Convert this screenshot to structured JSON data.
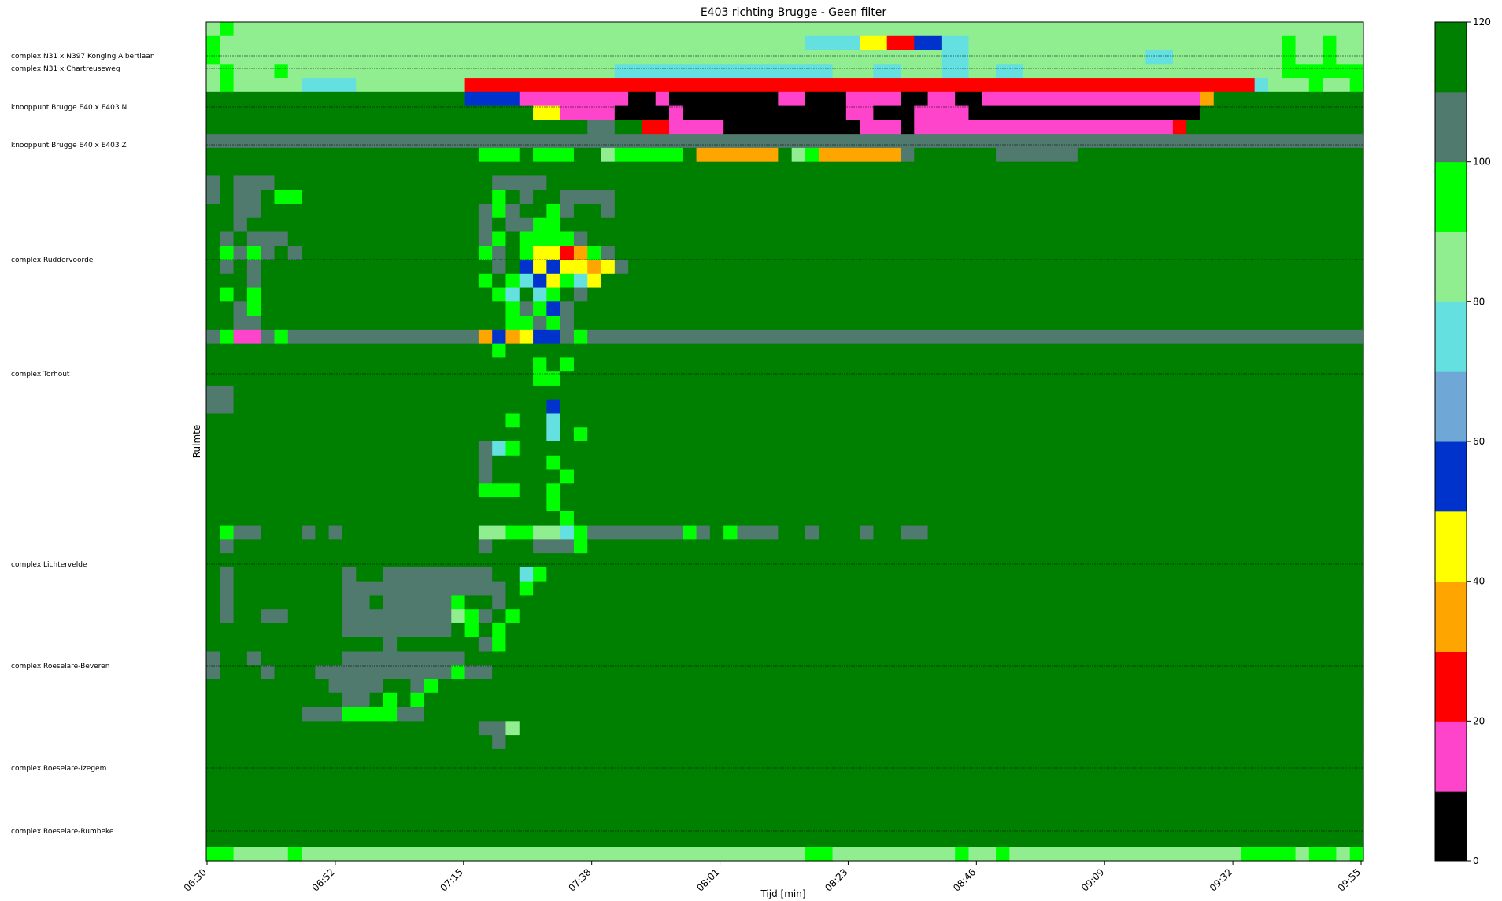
{
  "chart_data": {
    "type": "heatmap",
    "title": "E403 richting Brugge - Geen filter",
    "xlabel": "Tijd [min]",
    "ylabel": "Ruimte",
    "x_ticks": [
      "06:30",
      "06:52",
      "07:15",
      "07:38",
      "08:01",
      "08:23",
      "08:46",
      "09:09",
      "09:32",
      "09:55"
    ],
    "y_labels": [
      "complex N31 x N397 Konging Albertlaan",
      "complex N31 x Chartreuseweg",
      "knooppunt Brugge E40 x E403 N",
      "knooppunt Brugge E40 x E403 Z",
      "complex Ruddervoorde",
      "complex Torhout",
      "complex Lichtervelde",
      "complex Roeselare-Beveren",
      "complex Roeselare-Izegem",
      "complex Roeselare-Rumbeke"
    ],
    "colorbar": {
      "ticks": [
        0,
        20,
        40,
        60,
        80,
        100,
        120
      ],
      "range": [
        0,
        120
      ],
      "levels": [
        {
          "from": 0,
          "to": 10,
          "color": "#000000"
        },
        {
          "from": 10,
          "to": 20,
          "color": "#ff44cc"
        },
        {
          "from": 20,
          "to": 30,
          "color": "#ff0000"
        },
        {
          "from": 30,
          "to": 40,
          "color": "#ffa500"
        },
        {
          "from": 40,
          "to": 50,
          "color": "#ffff00"
        },
        {
          "from": 50,
          "to": 60,
          "color": "#0033cc"
        },
        {
          "from": 60,
          "to": 70,
          "color": "#6fa8d6"
        },
        {
          "from": 70,
          "to": 80,
          "color": "#64e0e0"
        },
        {
          "from": 80,
          "to": 90,
          "color": "#90ee90"
        },
        {
          "from": 90,
          "to": 100,
          "color": "#00ff00"
        },
        {
          "from": 100,
          "to": 110,
          "color": "#507a6e"
        },
        {
          "from": 110,
          "to": 120,
          "color": "#008000"
        }
      ]
    },
    "speed_grid": [
      "zwzzzzzzzzzzzzzzzzzzzzzzzzzzzzzzzzzzzzzzzzzzzzzzzzzzzzzzzzzzzzzzzzzzzzzzzzzzzzzzzzzzz",
      "wzzzzzzzzzzzzzzzzzzzzzzzzzzzzzzzzzzzzzzzzzzzuuuuyyrrbbuuzzzzzzzzzzzzzzzzzzzzzzzwzzwzzz",
      "wzzzzzzzzzzzzzzzzzzzzzzzzzzzzzzzzzzzzzzzzzzzzzzzzzzzzzuuzzzzzzzzzzzzzuuzzzzzzzzwzzwzzz",
      "zwzzzwzzzzzzzzzzzzzzzzzzzzzzzzuuuuuuuuuuuuuuuuzzzuuzzzuuzzuuzzzzzzzzzzzzzzzzzzzwwwwwww",
      "zwzzzzzuuuuzzzzzzzzrrrrrrrrrrrrrrrrrrrrrrrrrrrrrrrrrrrrrrrrrrrrrrrrrrrrrrrrrruzzzwzzwww",
      "GGGGGGGGGGGGGGGGGGGbbbbffffffffkkfkkkkkkkkffkkkffffkkffkkffffffffffffffffoGGGGGGGGGGGG",
      "GGGGGGGGGGGGGGGGGGGGGGGGyyffffkkkkfkkkkkkkkkkkkffkkkffffkkkkkkkkkkkkkkkkkGGGGGGGGGGGGGG",
      "GGGGGGGGGGGGGGGGGGGGGGGGGGGGggGGrrffffkkkkkkkkkkfffkfffffffffffffffffffrGGGGGGGGGGGGGG",
      "ggggggggggggggggggggggggggggggggggggggggggggggggggggggggggggggggggggggggggggggggggggggggg",
      "GGGGGGGGGGGGGGGGGGGGwwwGwwwGGzwwwwwGooooooGzwoooooogGGGGGGggggggGGGGGGGGGGGGGGGGGGGGGG",
      "GGGGGGGGGGGGGGGGGGGGGGGGGGGGGGGGGGGGGGGGGGGGGGGGGGGGGGGGGGGGGGGGGGGGGGGGGGGGGGGGGGGGGG",
      "gGgggGGGGGGGGGGGGGGGGggggGGGGGGGGGGGGGGGGGGGGGGGGGGGGGGGGGGGGGGGGGGGGGGGGGGGGGGGGGGGGG",
      "gGggGwwGGGGGGGGGGGGGGwGgGGggggGGGGGGGGGGGGGGGGGGGGGGGGGGGGGGGGGGGGGGGGGGGGGGGGGGGGGGGG",
      "GGggGGGGGGGGGGGGGGGGgwgGGwgGGgGGGGGGGGGGGGGGGGGGGGGGGGGGGGGGGGGGGGGGGGGGGGGGGGGGGGGGGG",
      "GGgGGGGGGGGGGGGGGGGGgGggwwGGGGGGGGGGGGGGGGGGGGGGGGGGGGGGGGGGGGGGGGGGGGGGGGGGGGGGGGGGGG",
      "GgGgggGGGGGGGGGGGGGGgwGwwwwgGGGGGGGGGGGGGGGGGGGGGGGGGGGGGGGGGGGGGGGGGGGGGGGGGGGGGGGGGG",
      "GwgwgGgGGGGGGGGGGGGGwgGwyyrowgGGGGGGGGGGGGGGGGGGGGGGGGGGGGGGGGGGGGGGGGGGGGGGGGGGGGGGGG",
      "GgGgGGGGGGGGGGGGGGGGGgGbybyyoygGGGGGGGGGGGGGGGGGGGGGGGGGGGGGGGGGGGGGGGGGGGGGGGGGGGGGGG",
      "GGGgGGGGGGGGGGGGGGGGwGwubywuyGGGGGGGGGGGGGGGGGGGGGGGGGGGGGGGGGGGGGGGGGGGGGGGGGGGGGGGGG",
      "GwGwGGGGGGGGGGGGGGGGGwuGuwGgGGGGGGGGGGGGGGGGGGGGGGGGGGGGGGGGGGGGGGGGGGGGGGGGGGGGGGGGGG",
      "GGgwGGGGGGGGGGGGGGGGGGwgwbgGGGGGGGGGGGGGGGGGGGGGGGGGGGGGGGGGGGGGGGGGGGGGGGGGGGGGGGGGGG",
      "GGggGGGGGGGGGGGGGGGGGGwwgwgGGGGGGGGGGGGGGGGGGGGGGGGGGGGGGGGGGGGGGGGGGGGGGGGGGGGGGGGGGG",
      "gwffgwggggggggggggggoboybbgwggggggggggggggggggggggggggggggggggggggggggggggggggggggggggg",
      "GGGGGGGGGGGGGGGGGGGGGwGGGGGGGGGGGGGGGGGGGGGGGGGGGGGGGGGGGGGGGGGGGGGGGGGGGGGGGGGGGGGGGG",
      "GGGGGGGGGGGGGGGGGGGGGGGGwGwGGGGGGGGGGGGGGGGGGGGGGGGGGGGGGGGGGGGGGGGGGGGGGGGGGGGGGGGGGG",
      "GGGGGGGGGGGGGGGGGGGGGGGGwwGGGGGGGGGGGGGGGGGGGGGGGGGGGGGGGGGGGGGGGGGGGGGGGGGGGGGGGGGGGG",
      "ggGGGGGGGGGGGGGGGGGGGGGGGGGGGGGGGGGGGGGGGGGGGGGGGGGGGGGGGGGGGGGGGGGGGGGGGGGGGGGGGGGGGG",
      "ggGGGGGGGGGGGGGGGGGGGGGGGbGGGGGGGGGGGGGGGGGGGGGGGGGGGGGGGGGGGGGGGGGGGGGGGGGGGGGGGGGGGG",
      "GGGGGGGGGGGGGGGGGGGGGGwGGuGGGGGGGGGGGGGGGGGGGGGGGGGGGGGGGGGGGGGGGGGGGGGGGGGGGGGGGGGGGG",
      "GGGGGGGGGGGGGGGGGGGGGGGGGuGwGGGGGGGGGGGGGGGGGGGGGGGGGGGGGGGGGGGGGGGGGGGGGGGGGGGGGGGGGG",
      "GGGGGGGGGGGGGGGGGGGGguwGGGGGGGGGGGGGGGGGGGGGGGGGGGGGGGGGGGGGGGGGGGGGGGGGGGGGGGGGGGGGGG",
      "GGGGGGGGGGGGGGGGGGGGgGGGGwGGGGGGGGGGGGGGGGGGGGGGGGGGGGGGGGGGGGGGGGGGGGGGGGGGGGGGGGGGGG",
      "GGGGGGGGGGGGGGGGGGGGgGGGGGwGGGGGGGGGGGGGGGGGGGGGGGGGGGGGGGGGGGGGGGGGGGGGGGGGGGGGGGGGGG",
      "GGGGGGGGGGGGGGGGGGGGwwwGGwGGGGGGGGGGGGGGGGGGGGGGGGGGGGGGGGGGGGGGGGGGGGGGGGGGGGGGGGGGGG",
      "GGGGGGGGGGGGGGGGGGGGGGGGGwGGGGGGGGGGGGGGGGGGGGGGGGGGGGGGGGGGGGGGGGGGGGGGGGGGGGGGGGGGGG",
      "GGGGGGGGGGGGGGGGGGGGGGGGGGwGGGGGGGGGGGGGGGGGGGGGGGGGGGGGGGGGGGGGGGGGGGGGGGGGGGGGGGGGGG",
      "GwggGGGgGgGGGGGGGGGGzzwwzzuwgggggggwgGwgggGGgGGGgGGggGGGGGGGGGGGGGGGGGGGGGGGGGGGGGGGGG",
      "GgGGGGGGGGGGGGGGGGGGgGGGgggwGGGGGGGGGGGGGGGGGGGGGGGGGGGGGGGGGGGGGGGGGGGGGGGGGGGGGGGGGG",
      "GGGGGGGGGGGGGGGGGGGGGGGGGGGGGGGGGGGGGGGGGGGGGGGGGGGGGGGGGGGGGGGGGGGGGGGGGGGGGGGGGGGGGG",
      "GgGGGGGGGGgGGggggggggGGuwGGGGGGGGGGGGGGGGGGGGGGGGGGGGGGGGGGGGGGGGGGGGGGGGGGGGGGGGGGGGG",
      "GgGGGGGGGGggggggggggggGwGGGGGGGGGGGGGGGGGGGGGGGGGGGGGGGGGGGGGGGGGGGGGGGGGGGGGGGGGGGGGG",
      "GgGGGGGGGGggGgggggwGGgGGGGGGGGGGGGGGGGGGGGGGGGGGGGGGGGGGGGGGGGGGGGGGGGGGGGGGGGGGGGGGGG",
      "GgGGggGGGGggggggggzwgGwGGGGGGGGGGGGGGGGGGGGGGGGGGGGGGGGGGGGGGGGGGGGGGGGGGGGGGGGGGGGGGG",
      "GGGGGGGGGGggggggggGwGwGGGGGGGGGGGGGGGGGGGGGGGGGGGGGGGGGGGGGGGGGGGGGGGGGGGGGGGGGGGGGGGG",
      "GGGGGGGGGGGGGgGGGGGGgwGGGGGGGGGGGGGGGGGGGGGGGGGGGGGGGGGGGGGGGGGGGGGGGGGGGGGGGGGGGGGGGG",
      "gGGgGGGGGGgggggggggGGGGGGGGGGGGGGGGGGGGGGGGGGGGGGGGGGGGGGGGGGGGGGGGGGGGGGGGGGGGGGGGGGG",
      "gGGGgGGGggggggggggwggGGGGGGGGGGGGGGGGGGGGGGGGGGGGGGGGGGGGGGGGGGGGGGGGGGGGGGGGGGGGGGGGG",
      "GGGGGGGGGggggGGgwGGGGGGGGGGGGGGGGGGGGGGGGGGGGGGGGGGGGGGGGGGGGGGGGGGGGGGGGGGGGGGGGGGGGG",
      "GGGGGGGGGGggGwGwGGGGGGGGGGGGGGGGGGGGGGGGGGGGGGGGGGGGGGGGGGGGGGGGGGGGGGGGGGGGGGGGGGGGGG",
      "GGGGGGGgggwwwwggGGGGGGGGGGGGGGGGGGGGGGGGGGGGGGGGGGGGGGGGGGGGGGGGGGGGGGGGGGGGGGGGGGGGGG",
      "GGGGGGGGGGGGGGGGGGGGggzGGGGGGGGGGGGGGGGGGGGGGGGGGGGGGGGGGGGGGGGGGGGGGGGGGGGGGGGGGGGGGG",
      "GGGGGGGGGGGGGGGGGGGGGgGGGGGGGGGGGGGGGGGGGGGGGGGGGGGGGGGGGGGGGGGGGGGGGGGGGGGGGGGGGGGGGG",
      "GGGGGGGGGGGGGGGGGGGGGGGGGGGGGGGGGGGGGGGGGGGGGGGGGGGGGGGGGGGGGGGGGGGGGGGGGGGGGGGGGGGGGG",
      "GGGGGGGGGGGGGGGGGGGGGGGGGGGGGGGGGGGGGGGGGGGGGGGGGGGGGGGGGGGGGGGGGGGGGGGGGGGGGGGGGGGGGG",
      "GGGGGGGGGGGGGGGGGGGGGGGGGGGGGGGGGGGGGGGGGGGGGGGGGGGGGGGGGGGGGGGGGGGGGGGGGGGGGGGGGGGGGG",
      "GGGGGGGGGGGGGGGGGGGGGGGGGGGGGGGGGGGGGGGGGGGGGGGGGGGGGGGGGGGGGGGGGGGGGGGGGGGGGGGGGGGGGG",
      "GGGGGGGGGGGGGGGGGGGGGGGGGGGGGGGGGGGGGGGGGGGGGGGGGGGGGGGGGGGGGGGGGGGGGGGGGGGGGGGGGGGGGG",
      "GGGGGGGGGGGGGGGGGGGGGGGGGGGGGGGGGGGGGGGGGGGGGGGGGGGGGGGGGGGGGGGGGGGGGGGGGGGGGGGGGGGGGG",
      "GGGGGGGGGGGGGGGGGGGGGGGGGGGGGGGGGGGGGGGGGGGGGGGGGGGGGGGGGGGGGGGGGGGGGGGGGGGGGGGGGGGGGG",
      "wwzzzzwzzzzzzzzzzzzzzzzzzzzzzzzzzzzzzzzzzzzzwwzzzzzzzzzwzzwzzzzzzzzzzzzzzzzzwwwwzwwzww"
    ],
    "legend_codes": {
      "k": "0-10",
      "f": "10-20",
      "r": "20-30",
      "o": "30-40",
      "y": "40-50",
      "b": "50-60",
      "s": "60-70",
      "u": "70-80",
      "z": "80-90",
      "w": "90-100",
      "g": "100-110",
      "G": "110-120"
    }
  }
}
